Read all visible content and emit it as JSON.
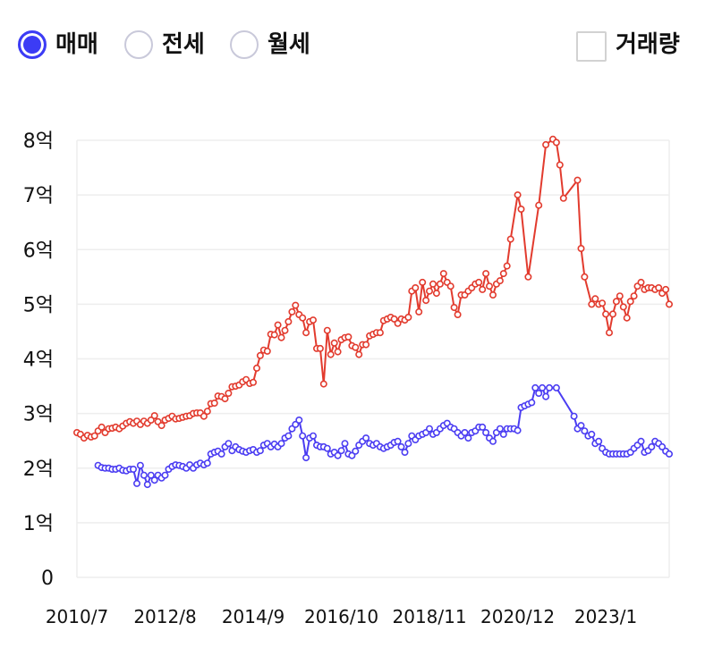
{
  "controls": {
    "trade_types": [
      {
        "label": "매매",
        "selected": true
      },
      {
        "label": "전세",
        "selected": false
      },
      {
        "label": "월세",
        "selected": false
      }
    ],
    "volume_toggle": {
      "label": "거래량",
      "checked": false
    }
  },
  "colors": {
    "accent": "#3c3cf5",
    "upper_line": "#e23b2e",
    "lower_line": "#4b3df2",
    "grid": "#eeeeee",
    "radio_border": "#c9c9da"
  },
  "chart_data": {
    "type": "line",
    "title": "",
    "xlabel": "",
    "ylabel": "",
    "grid": true,
    "ylim": [
      0,
      8
    ],
    "y_tick_values": [
      0,
      1,
      2,
      3,
      4,
      5,
      6,
      7,
      8
    ],
    "y_ticks": [
      "0",
      "1억",
      "2억",
      "3억",
      "4억",
      "5억",
      "6억",
      "7억",
      "8억"
    ],
    "x_ticks": [
      "2010/7",
      "2012/8",
      "2014/9",
      "2016/10",
      "2018/11",
      "2020/12",
      "2023/1"
    ],
    "x": [
      "2010/7",
      "2010/8",
      "2010/9",
      "2010/10",
      "2010/11",
      "2010/12",
      "2011/1",
      "2011/2",
      "2011/3",
      "2011/4",
      "2011/5",
      "2011/6",
      "2011/7",
      "2011/8",
      "2011/9",
      "2011/10",
      "2011/11",
      "2011/12",
      "2012/1",
      "2012/2",
      "2012/3",
      "2012/4",
      "2012/5",
      "2012/6",
      "2012/7",
      "2012/8",
      "2012/9",
      "2012/10",
      "2012/11",
      "2012/12",
      "2013/1",
      "2013/2",
      "2013/3",
      "2013/4",
      "2013/5",
      "2013/6",
      "2013/7",
      "2013/8",
      "2013/9",
      "2013/10",
      "2013/11",
      "2013/12",
      "2014/1",
      "2014/2",
      "2014/3",
      "2014/4",
      "2014/5",
      "2014/6",
      "2014/7",
      "2014/8",
      "2014/9",
      "2014/10",
      "2014/11",
      "2014/12",
      "2015/1",
      "2015/2",
      "2015/3",
      "2015/4",
      "2015/5",
      "2015/6",
      "2015/7",
      "2015/8",
      "2015/9",
      "2015/10",
      "2015/11",
      "2015/12",
      "2016/1",
      "2016/2",
      "2016/3",
      "2016/4",
      "2016/5",
      "2016/6",
      "2016/7",
      "2016/8",
      "2016/9",
      "2016/10",
      "2016/11",
      "2016/12",
      "2017/1",
      "2017/2",
      "2017/3",
      "2017/4",
      "2017/5",
      "2017/6",
      "2017/7",
      "2017/8",
      "2017/9",
      "2017/10",
      "2017/11",
      "2017/12",
      "2018/1",
      "2018/2",
      "2018/3",
      "2018/4",
      "2018/5",
      "2018/6",
      "2018/7",
      "2018/8",
      "2018/9",
      "2018/10",
      "2018/11",
      "2018/12",
      "2019/1",
      "2019/2",
      "2019/3",
      "2019/4",
      "2019/5",
      "2019/6",
      "2019/7",
      "2019/8",
      "2019/9",
      "2019/10",
      "2019/11",
      "2019/12",
      "2020/1",
      "2020/2",
      "2020/3",
      "2020/4",
      "2020/5",
      "2020/6",
      "2020/7",
      "2020/8",
      "2020/9",
      "2020/10",
      "2020/11",
      "2020/12",
      "2021/1",
      "2021/2",
      "2021/3",
      "2021/4",
      "2021/5",
      "2021/6",
      "2021/7",
      "2021/8",
      "2021/9",
      "2021/10",
      "2021/11",
      "2021/12",
      "2022/1",
      "2022/2",
      "2022/3",
      "2022/4",
      "2022/5",
      "2022/6",
      "2022/7",
      "2022/8",
      "2022/9",
      "2022/10",
      "2022/11",
      "2022/12",
      "2023/1",
      "2023/2",
      "2023/3",
      "2023/4",
      "2023/5",
      "2023/6",
      "2023/7",
      "2023/8",
      "2023/9",
      "2023/10",
      "2023/11",
      "2023/12",
      "2024/1",
      "2024/2",
      "2024/3",
      "2024/4",
      "2024/5",
      "2024/6",
      "2024/7"
    ],
    "series": [
      {
        "color": "#e23b2e",
        "values": [
          2.65,
          2.62,
          2.55,
          2.6,
          2.57,
          2.59,
          2.68,
          2.75,
          2.65,
          2.72,
          2.73,
          2.75,
          2.72,
          2.77,
          2.82,
          2.85,
          2.82,
          2.86,
          2.8,
          2.86,
          2.82,
          2.88,
          2.96,
          2.85,
          2.78,
          2.88,
          2.91,
          2.95,
          2.9,
          2.91,
          2.93,
          2.95,
          2.96,
          3.0,
          3.01,
          3.01,
          2.95,
          3.04,
          3.18,
          3.19,
          3.32,
          3.31,
          3.27,
          3.37,
          3.49,
          3.5,
          3.52,
          3.58,
          3.62,
          3.55,
          3.57,
          3.83,
          4.06,
          4.16,
          4.14,
          4.45,
          4.44,
          4.62,
          4.39,
          4.52,
          4.68,
          4.86,
          4.98,
          4.81,
          4.75,
          4.48,
          4.68,
          4.71,
          4.19,
          4.19,
          3.54,
          4.52,
          4.08,
          4.29,
          4.13,
          4.35,
          4.39,
          4.4,
          4.24,
          4.21,
          4.08,
          4.26,
          4.26,
          4.42,
          4.45,
          4.48,
          4.48,
          4.7,
          4.73,
          4.76,
          4.73,
          4.65,
          4.73,
          4.71,
          4.76,
          5.24,
          5.3,
          4.86,
          5.4,
          5.07,
          5.24,
          5.37,
          5.2,
          5.37,
          5.56,
          5.4,
          5.33,
          4.94,
          4.81,
          5.17,
          5.17,
          5.24,
          5.3,
          5.37,
          5.4,
          5.27,
          5.56,
          5.33,
          5.17,
          5.37,
          5.43,
          5.56,
          5.7,
          6.19,
          null,
          7.0,
          6.74,
          null,
          5.5,
          null,
          null,
          6.81,
          null,
          7.92,
          null,
          8.02,
          7.96,
          7.55,
          6.94,
          null,
          null,
          null,
          7.27,
          6.02,
          5.5,
          null,
          5.0,
          5.1,
          5.0,
          5.02,
          4.82,
          4.48,
          4.82,
          5.05,
          5.15,
          4.95,
          4.75,
          5.05,
          5.15,
          5.33,
          5.4,
          5.27,
          5.3,
          5.3,
          5.27,
          5.3,
          5.2,
          5.27,
          5.0
        ]
      },
      {
        "color": "#4b3df2",
        "values": [
          null,
          null,
          null,
          null,
          null,
          null,
          2.05,
          2.01,
          2.0,
          2.0,
          1.98,
          1.98,
          2.0,
          1.96,
          1.95,
          1.98,
          1.98,
          1.72,
          2.05,
          1.87,
          1.7,
          1.87,
          1.78,
          1.87,
          1.82,
          1.87,
          1.98,
          2.03,
          2.06,
          2.05,
          2.03,
          2.0,
          2.06,
          2.0,
          2.06,
          2.09,
          2.06,
          2.09,
          2.26,
          2.29,
          2.31,
          2.26,
          2.39,
          2.45,
          2.32,
          2.39,
          2.34,
          2.31,
          2.29,
          2.32,
          2.34,
          2.29,
          2.32,
          2.42,
          2.45,
          2.39,
          2.44,
          2.39,
          2.45,
          2.55,
          2.59,
          2.72,
          2.8,
          2.88,
          2.59,
          2.19,
          2.55,
          2.59,
          2.42,
          2.39,
          2.39,
          2.36,
          2.26,
          2.29,
          2.23,
          2.32,
          2.45,
          2.26,
          2.23,
          2.31,
          2.42,
          2.49,
          2.55,
          2.45,
          2.42,
          2.45,
          2.39,
          2.36,
          2.39,
          2.42,
          2.47,
          2.49,
          2.39,
          2.29,
          2.45,
          2.59,
          2.52,
          2.59,
          2.62,
          2.65,
          2.72,
          2.62,
          2.65,
          2.72,
          2.78,
          2.82,
          2.75,
          2.72,
          2.65,
          2.59,
          2.65,
          2.55,
          2.65,
          2.68,
          2.75,
          2.75,
          2.65,
          2.55,
          2.49,
          2.65,
          2.72,
          2.62,
          2.72,
          2.72,
          2.72,
          2.69,
          3.11,
          3.14,
          3.17,
          3.2,
          3.47,
          3.37,
          3.47,
          3.31,
          3.47,
          null,
          3.47,
          null,
          null,
          null,
          null,
          2.95,
          2.72,
          2.78,
          2.68,
          2.59,
          2.62,
          2.45,
          2.49,
          2.36,
          2.29,
          2.26,
          2.26,
          2.26,
          2.26,
          2.26,
          2.26,
          2.29,
          2.36,
          2.42,
          2.49,
          2.29,
          2.32,
          2.39,
          2.49,
          2.45,
          2.39,
          2.31,
          2.26
        ]
      }
    ]
  }
}
